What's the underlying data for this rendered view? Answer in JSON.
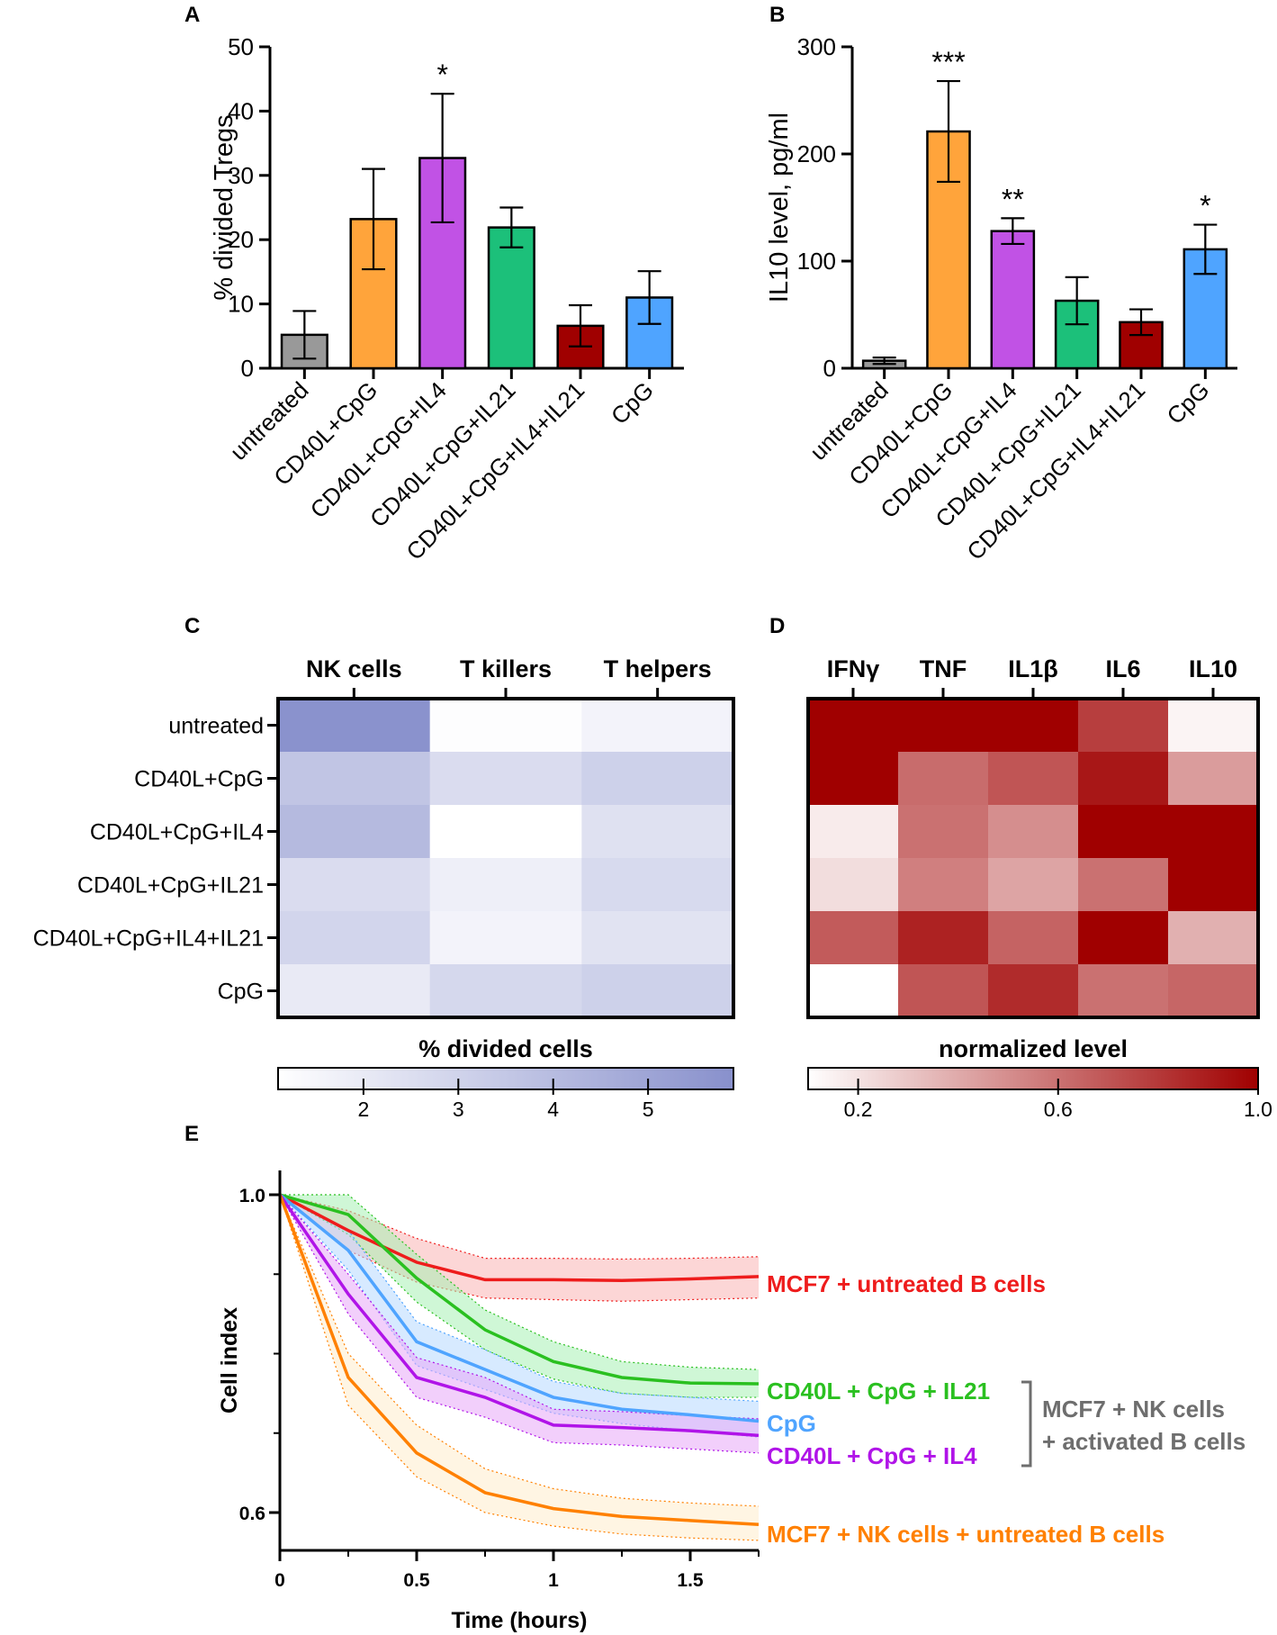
{
  "chart_data": [
    {
      "panel": "A",
      "type": "bar",
      "ylabel": "% divided Tregs",
      "ylim": [
        0,
        50
      ],
      "yticks": [
        0,
        10,
        20,
        30,
        40,
        50
      ],
      "categories": [
        "untreated",
        "CD40L+CpG",
        "CD40L+CpG+IL4",
        "CD40L+CpG+IL21",
        "CD40L+CpG+IL4+IL21",
        "CpG"
      ],
      "values": [
        5.2,
        23.2,
        32.7,
        21.9,
        6.6,
        11.0
      ],
      "error": [
        3.7,
        7.8,
        10.0,
        3.1,
        3.2,
        4.1
      ],
      "significance": [
        "",
        "",
        "*",
        "",
        "",
        ""
      ],
      "colors": [
        "#999999",
        "#ffa43b",
        "#c152e5",
        "#1cc07a",
        "#a00000",
        "#4fa4ff"
      ]
    },
    {
      "panel": "B",
      "type": "bar",
      "ylabel": "IL10 level, pg/ml",
      "ylim": [
        0,
        300
      ],
      "yticks": [
        0,
        100,
        200,
        300
      ],
      "categories": [
        "untreated",
        "CD40L+CpG",
        "CD40L+CpG+IL4",
        "CD40L+CpG+IL21",
        "CD40L+CpG+IL4+IL21",
        "CpG"
      ],
      "values": [
        7,
        221,
        128,
        63,
        43,
        111
      ],
      "error": [
        3,
        47,
        12,
        22,
        12,
        23
      ],
      "significance": [
        "",
        "***",
        "**",
        "",
        "",
        "*"
      ],
      "colors": [
        "#999999",
        "#ffa43b",
        "#c152e5",
        "#1cc07a",
        "#a00000",
        "#4fa4ff"
      ]
    },
    {
      "panel": "C",
      "type": "heatmap",
      "columns": [
        "NK cells",
        "T killers",
        "T helpers"
      ],
      "rows": [
        "untreated",
        "CD40L+CpG",
        "CD40L+CpG+IL4",
        "CD40L+CpG+IL21",
        "CD40L+CpG+IL4+IL21",
        "CpG"
      ],
      "values": [
        [
          5.8,
          1.2,
          1.6
        ],
        [
          3.6,
          2.6,
          3.1
        ],
        [
          4.1,
          1.1,
          2.4
        ],
        [
          2.6,
          1.8,
          2.7
        ],
        [
          2.9,
          1.6,
          2.3
        ],
        [
          2.0,
          2.8,
          3.1
        ]
      ],
      "colorbar": {
        "title": "% divided cells",
        "ticks": [
          2,
          3,
          4,
          5
        ],
        "range": [
          1.1,
          5.9
        ],
        "low_color": "#ffffff",
        "high_color": "#8890cc"
      }
    },
    {
      "panel": "D",
      "type": "heatmap",
      "columns": [
        "IFNγ",
        "TNF",
        "IL1β",
        "IL6",
        "IL10"
      ],
      "rows": [
        "untreated",
        "CD40L+CpG",
        "CD40L+CpG+IL4",
        "CD40L+CpG+IL21",
        "CD40L+CpG+IL4+IL21",
        "CpG"
      ],
      "values": [
        [
          1.0,
          1.0,
          1.0,
          0.78,
          0.14
        ],
        [
          1.0,
          0.62,
          0.7,
          0.92,
          0.45
        ],
        [
          0.17,
          0.6,
          0.5,
          1.0,
          1.0
        ],
        [
          0.22,
          0.55,
          0.42,
          0.6,
          1.0
        ],
        [
          0.68,
          0.88,
          0.65,
          1.0,
          0.38
        ],
        [
          0.1,
          0.7,
          0.85,
          0.6,
          0.64
        ]
      ],
      "colorbar": {
        "title": "normalized level",
        "ticks": [
          0.2,
          0.6,
          1.0
        ],
        "tick_labels": [
          "0.2",
          "0.6",
          "1.0"
        ],
        "range": [
          0.1,
          1.0
        ],
        "low_color": "#ffffff",
        "high_color": "#a00000"
      }
    },
    {
      "panel": "E",
      "type": "line",
      "xlabel": "Time (hours)",
      "ylabel": "Cell index",
      "xlim": [
        0,
        1.75
      ],
      "ylim": [
        0.55,
        1.02
      ],
      "xticks": [
        0,
        0.5,
        1,
        1.5
      ],
      "xtick_labels": [
        "0",
        "0.5",
        "1",
        "1.5"
      ],
      "yticks": [
        0.6,
        1.0
      ],
      "ytick_labels": [
        "0.6",
        "1.0"
      ],
      "x": [
        0,
        0.25,
        0.5,
        0.75,
        1.0,
        1.25,
        1.5,
        1.75
      ],
      "series": [
        {
          "name": "MCF7 + untreated B cells",
          "color": "#ee1c1c",
          "fill": "#f9b4b4",
          "values": [
            1.0,
            0.955,
            0.915,
            0.893,
            0.893,
            0.892,
            0.894,
            0.897
          ],
          "lower": [
            1.0,
            0.93,
            0.89,
            0.87,
            0.868,
            0.866,
            0.868,
            0.87
          ],
          "upper": [
            1.0,
            0.98,
            0.945,
            0.92,
            0.92,
            0.919,
            0.92,
            0.922
          ]
        },
        {
          "name": "CD40L + CpG + IL21",
          "color": "#2ac020",
          "fill": "#a7f0b4",
          "values": [
            1.0,
            0.975,
            0.895,
            0.83,
            0.79,
            0.77,
            0.763,
            0.762
          ],
          "lower": [
            1.0,
            0.95,
            0.865,
            0.805,
            0.768,
            0.75,
            0.745,
            0.745
          ],
          "upper": [
            1.0,
            1.0,
            0.925,
            0.855,
            0.815,
            0.79,
            0.783,
            0.78
          ]
        },
        {
          "name": "CpG",
          "color": "#4fa4ff",
          "fill": "#b7d9ff",
          "values": [
            1.0,
            0.93,
            0.815,
            0.78,
            0.745,
            0.73,
            0.723,
            0.715
          ],
          "lower": [
            1.0,
            0.905,
            0.785,
            0.755,
            0.725,
            0.712,
            0.703,
            0.695
          ],
          "upper": [
            1.0,
            0.955,
            0.84,
            0.805,
            0.765,
            0.75,
            0.745,
            0.74
          ]
        },
        {
          "name": "CD40L + CpG + IL4",
          "color": "#b014e8",
          "fill": "#e7a8f7",
          "values": [
            1.0,
            0.875,
            0.77,
            0.745,
            0.71,
            0.707,
            0.703,
            0.697
          ],
          "lower": [
            1.0,
            0.85,
            0.745,
            0.72,
            0.688,
            0.685,
            0.68,
            0.675
          ],
          "upper": [
            1.0,
            0.9,
            0.795,
            0.77,
            0.73,
            0.727,
            0.722,
            0.718
          ]
        },
        {
          "name": "MCF7 + NK cells + untreated B cells",
          "color": "#ff8000",
          "fill": "#ffeccc",
          "values": [
            1.0,
            0.77,
            0.675,
            0.625,
            0.605,
            0.595,
            0.59,
            0.585
          ],
          "lower": [
            1.0,
            0.735,
            0.645,
            0.6,
            0.583,
            0.573,
            0.568,
            0.565
          ],
          "upper": [
            1.0,
            0.8,
            0.71,
            0.655,
            0.63,
            0.618,
            0.612,
            0.608
          ]
        }
      ],
      "bracket_label": [
        "MCF7 + NK cells",
        "+ activated B cells"
      ],
      "bracket_color": "#6e6e6e"
    }
  ],
  "panel_letters": [
    "A",
    "B",
    "C",
    "D",
    "E"
  ]
}
